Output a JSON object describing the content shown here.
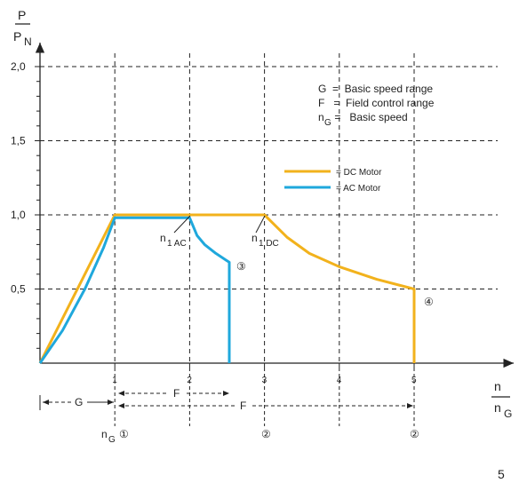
{
  "colors": {
    "dc": "#f2b21c",
    "ac": "#1fa8dc",
    "ink": "#222222"
  },
  "chart_data": {
    "type": "line",
    "ylabel": {
      "numerator": "P",
      "denominator": "P",
      "denominator_sub": "N"
    },
    "xlabel": {
      "numerator": "n",
      "denominator": "n",
      "denominator_sub": "G"
    },
    "xlim": [
      0,
      6
    ],
    "ylim": [
      0,
      2.0
    ],
    "xticks": [
      {
        "value": 1,
        "label": "1"
      },
      {
        "value": 2,
        "label": "2"
      },
      {
        "value": 3,
        "label": "3"
      },
      {
        "value": 4,
        "label": "4"
      },
      {
        "value": 5,
        "label": "5"
      }
    ],
    "yticks": [
      {
        "value": 0.5,
        "label": "0,5"
      },
      {
        "value": 1.0,
        "label": "1,0"
      },
      {
        "value": 1.5,
        "label": "1,5"
      },
      {
        "value": 2.0,
        "label": "2,0"
      }
    ],
    "legend_text": {
      "line1": "G  =  Basic speed range",
      "line2": "F   =  Field control range",
      "line3_n": "n",
      "line3_sub": "G",
      "line3_rest": " =   Basic speed"
    },
    "series": [
      {
        "name": "= DC Motor",
        "color": "#f2b21c",
        "points": [
          [
            0,
            0
          ],
          [
            1,
            1.0
          ],
          [
            3,
            1.0
          ],
          [
            3.3,
            0.85
          ],
          [
            3.6,
            0.74
          ],
          [
            4.0,
            0.65
          ],
          [
            4.5,
            0.565
          ],
          [
            5,
            0.5
          ],
          [
            5,
            0
          ]
        ]
      },
      {
        "name": "= AC Motor",
        "color": "#1fa8dc",
        "points": [
          [
            0,
            0
          ],
          [
            0.3,
            0.22
          ],
          [
            0.6,
            0.5
          ],
          [
            0.85,
            0.78
          ],
          [
            1,
            0.98
          ],
          [
            2,
            0.98
          ],
          [
            2.1,
            0.86
          ],
          [
            2.2,
            0.8
          ],
          [
            2.35,
            0.74
          ],
          [
            2.53,
            0.68
          ],
          [
            2.53,
            0
          ]
        ]
      }
    ],
    "annotations": {
      "n1ac": {
        "n": "n",
        "sub": "1 AC"
      },
      "n1dc": {
        "n": "n",
        "sub": "1 DC"
      },
      "m3": "③",
      "m4": "④"
    },
    "ranges": {
      "G": "G",
      "F1": "F",
      "F2": "F",
      "ng": "n",
      "ng_sub": "G",
      "m1": "①",
      "m2a": "②",
      "m2b": "②"
    },
    "page_number": "5"
  }
}
